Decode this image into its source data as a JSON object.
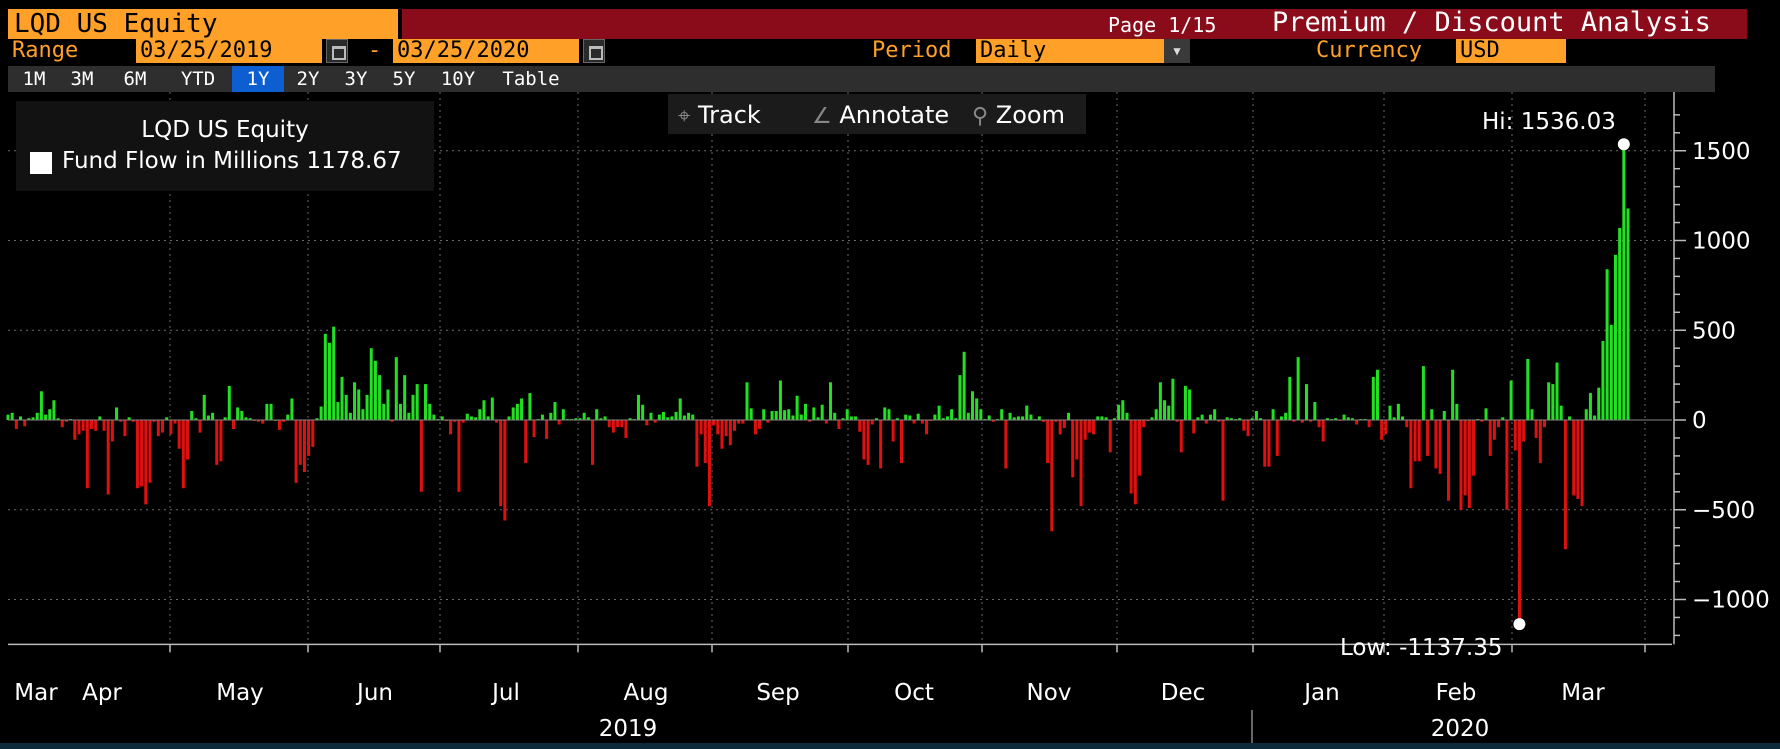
{
  "header": {
    "ticker": "LQD US Equity",
    "page": "Page 1/15",
    "app_title": "Premium / Discount Analysis"
  },
  "controls": {
    "range_label": "Range",
    "start_date": "03/25/2019",
    "dash": "-",
    "end_date": "03/25/2020",
    "period_label": "Period",
    "period_value": "Daily",
    "currency_label": "Currency",
    "currency_value": "USD"
  },
  "range_buttons": [
    "1M",
    "3M",
    "6M",
    "YTD",
    "1Y",
    "2Y",
    "3Y",
    "5Y",
    "10Y",
    "Table"
  ],
  "active_range": "1Y",
  "toolbar": {
    "track": "Track",
    "annotate": "Annotate",
    "zoom": "Zoom"
  },
  "legend": {
    "security": "LQD US Equity",
    "series_name": "Fund Flow in Millions",
    "last_value": "1178.67"
  },
  "colors": {
    "positive": "#22e022",
    "negative": "#e01010",
    "accent": "#ffa028",
    "header_red": "#8a0b1a",
    "active_button": "#0c5ed1"
  },
  "chart_data": {
    "type": "bar",
    "title": "",
    "xlabel": "",
    "ylabel": "",
    "ylim": [
      -1250,
      1800
    ],
    "yticks": [
      -1000,
      -500,
      0,
      500,
      1000,
      1500
    ],
    "grid": true,
    "legend_position": "top-left",
    "x_month_labels": [
      "Mar",
      "Apr",
      "May",
      "Jun",
      "Jul",
      "Aug",
      "Sep",
      "Oct",
      "Nov",
      "Dec",
      "Jan",
      "Feb",
      "Mar"
    ],
    "x_year_labels": [
      "2019",
      "2020"
    ],
    "high_label": "Hi: 1536.03",
    "low_label": "Low: -1137.35",
    "high": 1536.03,
    "low": -1137.35,
    "series": [
      {
        "name": "Fund Flow in Millions",
        "values": [
          30,
          40,
          -50,
          20,
          -35,
          10,
          15,
          40,
          160,
          30,
          60,
          110,
          10,
          -40,
          -10,
          5,
          -110,
          -80,
          -60,
          -380,
          -50,
          -60,
          20,
          -60,
          -415,
          -120,
          70,
          -10,
          -90,
          15,
          -10,
          -380,
          -370,
          -470,
          -350,
          -10,
          -90,
          -70,
          15,
          -80,
          -20,
          -160,
          -380,
          -220,
          50,
          10,
          -70,
          140,
          25,
          40,
          -250,
          -230,
          15,
          190,
          -50,
          70,
          50,
          15,
          10,
          -5,
          -10,
          -20,
          90,
          90,
          1,
          -55,
          -10,
          30,
          120,
          -350,
          -250,
          -290,
          -200,
          -150,
          10,
          75,
          480,
          430,
          520,
          100,
          240,
          140,
          40,
          210,
          170,
          60,
          140,
          400,
          330,
          250,
          90,
          170,
          -10,
          350,
          90,
          250,
          40,
          140,
          200,
          -400,
          200,
          90,
          30,
          5,
          20,
          -5,
          -80,
          -10,
          -400,
          -15,
          35,
          20,
          15,
          60,
          110,
          20,
          125,
          -15,
          -480,
          -560,
          20,
          70,
          90,
          120,
          -240,
          150,
          -95,
          5,
          30,
          -105,
          40,
          100,
          -25,
          60,
          5,
          5,
          10,
          10,
          40,
          15,
          -250,
          60,
          10,
          20,
          -40,
          -70,
          -40,
          -40,
          -100,
          10,
          5,
          140,
          85,
          -30,
          40,
          -15,
          30,
          45,
          15,
          20,
          45,
          120,
          25,
          40,
          30,
          -260,
          -80,
          -240,
          -480,
          -30,
          -80,
          -160,
          -90,
          -140,
          -60,
          -20,
          -20,
          210,
          65,
          -80,
          -50,
          60,
          -15,
          50,
          50,
          220,
          55,
          60,
          25,
          135,
          30,
          90,
          -10,
          70,
          15,
          85,
          -20,
          210,
          40,
          -50,
          10,
          60,
          20,
          20,
          -65,
          -220,
          -250,
          -25,
          10,
          -270,
          70,
          60,
          -120,
          10,
          -240,
          30,
          25,
          -20,
          35,
          -20,
          -80,
          -5,
          30,
          80,
          10,
          20,
          60,
          10,
          250,
          380,
          40,
          160,
          120,
          60,
          5,
          25,
          -10,
          5,
          60,
          -270,
          40,
          15,
          20,
          20,
          80,
          30,
          5,
          20,
          -10,
          -240,
          -620,
          -10,
          -80,
          -45,
          40,
          -320,
          -220,
          -480,
          -110,
          -70,
          -80,
          20,
          20,
          15,
          -180,
          10,
          85,
          110,
          40,
          -410,
          -470,
          -310,
          -40,
          -5,
          15,
          60,
          210,
          110,
          80,
          230,
          -10,
          -180,
          190,
          170,
          -75,
          15,
          30,
          -20,
          30,
          60,
          -10,
          -450,
          15,
          10,
          5,
          10,
          -60,
          -90,
          10,
          50,
          10,
          -260,
          -260,
          60,
          -200,
          20,
          40,
          240,
          -10,
          350,
          -15,
          200,
          -10,
          100,
          -40,
          -120,
          10,
          5,
          10,
          -5,
          30,
          15,
          10,
          -25,
          5,
          5,
          -40,
          240,
          280,
          -110,
          -80,
          80,
          15,
          90,
          20,
          -40,
          -380,
          -230,
          -230,
          300,
          -200,
          60,
          -270,
          -300,
          50,
          -450,
          280,
          90,
          -500,
          -420,
          -490,
          -310,
          5,
          -10,
          65,
          -200,
          -110,
          -40,
          15,
          -500,
          220,
          -170,
          -1137.35,
          -120,
          340,
          60,
          -100,
          -240,
          -40,
          210,
          200,
          320,
          80,
          -720,
          20,
          -420,
          -440,
          -480,
          60,
          150,
          25,
          180,
          440,
          840,
          530,
          920,
          1070,
          1536.03,
          1178.67
        ]
      }
    ]
  }
}
